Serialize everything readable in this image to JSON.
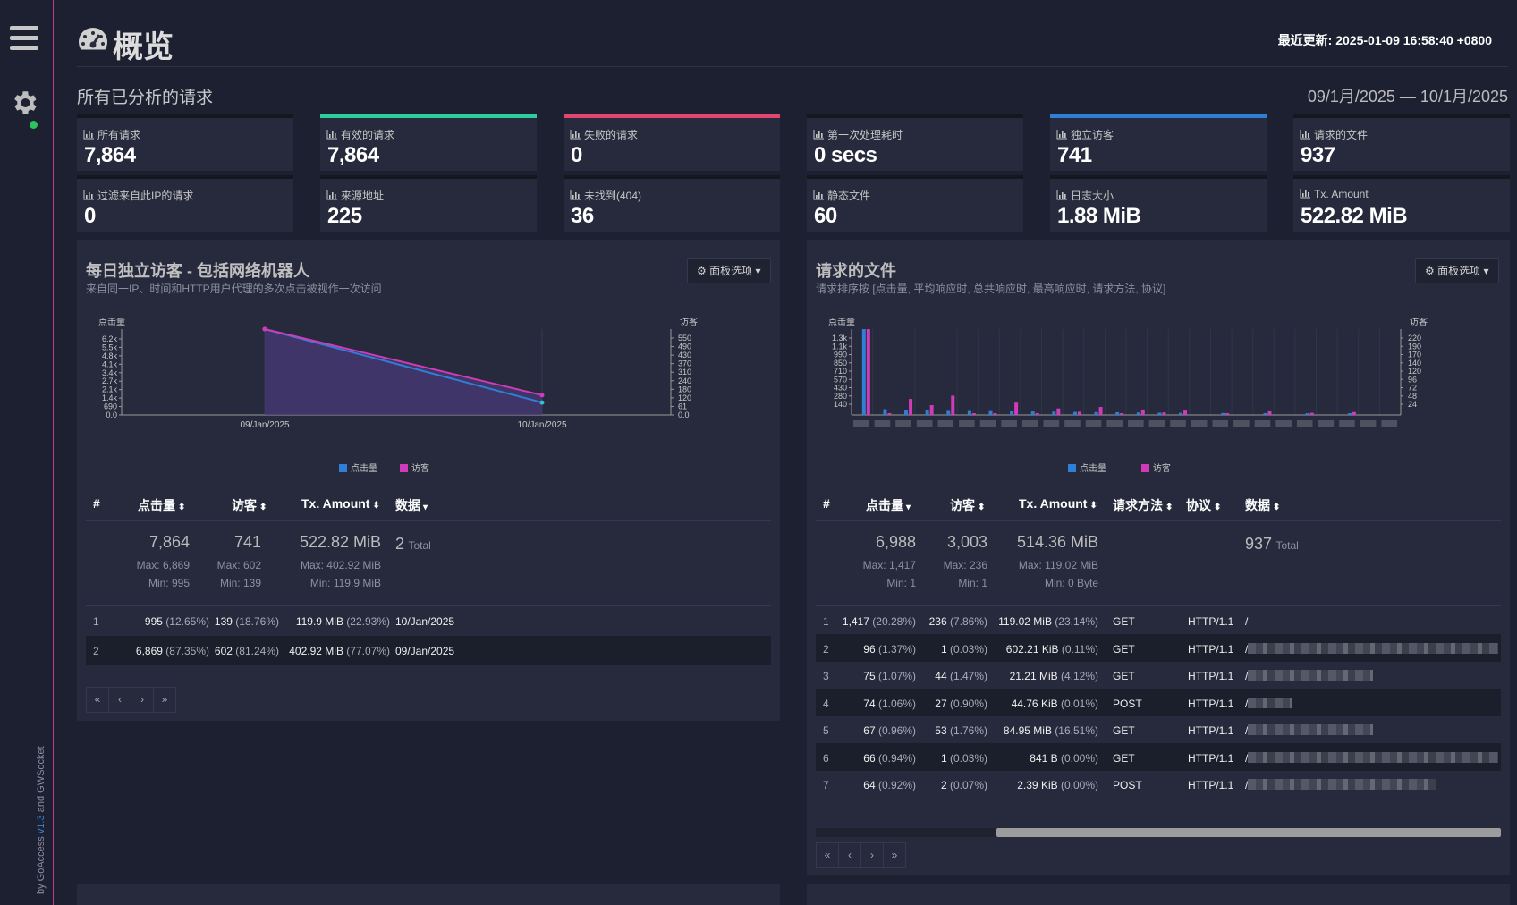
{
  "colors": {
    "accent": "#c23a8e",
    "green": "#2ecc9a",
    "pink": "#e0466e",
    "blue": "#2f7fd6",
    "hits": "#2f7fd6",
    "visitors": "#d13ab8"
  },
  "sidebar": {
    "menu_icon": "hamburger-icon",
    "settings_icon": "gear-icon",
    "status": "online",
    "credit_prefix": "by GoAccess",
    "credit_version": "v1.3",
    "credit_suffix": "and GWSocket"
  },
  "header": {
    "title": "概览",
    "title_icon": "dashboard-icon",
    "last_updated": "最近更新: 2025-01-09 16:58:40 +0800"
  },
  "overview": {
    "section_title": "所有已分析的请求",
    "date_range": "09/1月/2025 — 10/1月/2025",
    "cards": [
      {
        "label": "所有请求",
        "value": "7,864",
        "accent": "none"
      },
      {
        "label": "有效的请求",
        "value": "7,864",
        "accent": "green"
      },
      {
        "label": "失败的请求",
        "value": "0",
        "accent": "pink"
      },
      {
        "label": "第一次处理耗时",
        "value": "0 secs",
        "accent": "none"
      },
      {
        "label": "独立访客",
        "value": "741",
        "accent": "blue"
      },
      {
        "label": "请求的文件",
        "value": "937",
        "accent": "none"
      },
      {
        "label": "过滤来自此IP的请求",
        "value": "0",
        "accent": "none"
      },
      {
        "label": "来源地址",
        "value": "225",
        "accent": "none"
      },
      {
        "label": "未找到(404)",
        "value": "36",
        "accent": "none"
      },
      {
        "label": "静态文件",
        "value": "60",
        "accent": "none"
      },
      {
        "label": "日志大小",
        "value": "1.88 MiB",
        "accent": "none"
      },
      {
        "label": "Tx. Amount",
        "value": "522.82 MiB",
        "accent": "none"
      }
    ]
  },
  "visitors_panel": {
    "title": "每日独立访客 - 包括网络机器人",
    "subtitle": "来自同一IP、时间和HTTP用户代理的多次点击被视作一次访问",
    "options_label": "面板选项",
    "columns": [
      "#",
      "点击量",
      "访客",
      "Tx. Amount",
      "数据"
    ],
    "summary": {
      "hits": "7,864",
      "hits_max": "Max: 6,869",
      "hits_min": "Min: 995",
      "visitors": "741",
      "visitors_max": "Max: 602",
      "visitors_min": "Min: 139",
      "tx": "522.82 MiB",
      "tx_max": "Max: 402.92 MiB",
      "tx_min": "Min: 119.9 MiB",
      "data_total": "2",
      "total_label": "Total"
    },
    "rows": [
      {
        "n": "1",
        "hits": "995",
        "hits_pct": "(12.65%)",
        "visitors": "139",
        "visitors_pct": "(18.76%)",
        "tx": "119.9 MiB",
        "tx_pct": "(22.93%)",
        "data": "10/Jan/2025"
      },
      {
        "n": "2",
        "hits": "6,869",
        "hits_pct": "(87.35%)",
        "visitors": "602",
        "visitors_pct": "(81.24%)",
        "tx": "402.92 MiB",
        "tx_pct": "(77.07%)",
        "data": "09/Jan/2025"
      }
    ],
    "pager": [
      "«",
      "‹",
      "›",
      "»"
    ]
  },
  "files_panel": {
    "title": "请求的文件",
    "subtitle": "请求排序按 [点击量, 平均响应时, 总共响应时, 最高响应时, 请求方法, 协议]",
    "options_label": "面板选项",
    "columns": [
      "#",
      "点击量",
      "访客",
      "Tx. Amount",
      "请求方法",
      "协议",
      "数据"
    ],
    "summary": {
      "hits": "6,988",
      "hits_max": "Max: 1,417",
      "hits_min": "Min: 1",
      "visitors": "3,003",
      "visitors_max": "Max: 236",
      "visitors_min": "Min: 1",
      "tx": "514.36 MiB",
      "tx_max": "Max: 119.02 MiB",
      "tx_min": "Min: 0 Byte",
      "data_total": "937",
      "total_label": "Total"
    },
    "rows": [
      {
        "n": "1",
        "hits": "1,417",
        "hits_pct": "(20.28%)",
        "visitors": "236",
        "visitors_pct": "(7.86%)",
        "tx": "119.02 MiB",
        "tx_pct": "(23.14%)",
        "method": "GET",
        "proto": "HTTP/1.1",
        "path": "/"
      },
      {
        "n": "2",
        "hits": "96",
        "hits_pct": "(1.37%)",
        "visitors": "1",
        "visitors_pct": "(0.03%)",
        "tx": "602.21 KiB",
        "tx_pct": "(0.11%)",
        "method": "GET",
        "proto": "HTTP/1.1",
        "path": "/"
      },
      {
        "n": "3",
        "hits": "75",
        "hits_pct": "(1.07%)",
        "visitors": "44",
        "visitors_pct": "(1.47%)",
        "tx": "21.21 MiB",
        "tx_pct": "(4.12%)",
        "method": "GET",
        "proto": "HTTP/1.1",
        "path": "/"
      },
      {
        "n": "4",
        "hits": "74",
        "hits_pct": "(1.06%)",
        "visitors": "27",
        "visitors_pct": "(0.90%)",
        "tx": "44.76 KiB",
        "tx_pct": "(0.01%)",
        "method": "POST",
        "proto": "HTTP/1.1",
        "path": "/"
      },
      {
        "n": "5",
        "hits": "67",
        "hits_pct": "(0.96%)",
        "visitors": "53",
        "visitors_pct": "(1.76%)",
        "tx": "84.95 MiB",
        "tx_pct": "(16.51%)",
        "method": "GET",
        "proto": "HTTP/1.1",
        "path": "/"
      },
      {
        "n": "6",
        "hits": "66",
        "hits_pct": "(0.94%)",
        "visitors": "1",
        "visitors_pct": "(0.03%)",
        "tx": "841 B",
        "tx_pct": "(0.00%)",
        "method": "GET",
        "proto": "HTTP/1.1",
        "path": "/"
      },
      {
        "n": "7",
        "hits": "64",
        "hits_pct": "(0.92%)",
        "visitors": "2",
        "visitors_pct": "(0.07%)",
        "tx": "2.39 KiB",
        "tx_pct": "(0.00%)",
        "method": "POST",
        "proto": "HTTP/1.1",
        "path": "/"
      }
    ],
    "pager": [
      "«",
      "‹",
      "›",
      "»"
    ]
  },
  "chart_data": [
    {
      "type": "line",
      "title": "每日独立访客 - 包括网络机器人",
      "categories": [
        "09/Jan/2025",
        "10/Jan/2025"
      ],
      "series": [
        {
          "name": "点击量",
          "axis": "left",
          "values": [
            6869,
            995
          ]
        },
        {
          "name": "访客",
          "axis": "right",
          "values": [
            602,
            139
          ]
        }
      ],
      "ylabel_left": "点击量",
      "ylabel_right": "访客",
      "ylim_left": [
        0,
        6869
      ],
      "ylim_right": [
        0,
        602
      ],
      "yticks_left": [
        "6.2k",
        "5.5k",
        "4.8k",
        "4.1k",
        "3.4k",
        "2.7k",
        "2.1k",
        "1.4k",
        "690",
        "0.0"
      ],
      "yticks_right": [
        "550",
        "490",
        "430",
        "370",
        "310",
        "240",
        "180",
        "120",
        "61",
        "0.0"
      ],
      "legend": [
        "点击量",
        "访客"
      ],
      "legend_position": "bottom",
      "grid": true
    },
    {
      "type": "bar",
      "title": "请求的文件",
      "series": [
        {
          "name": "点击量",
          "axis": "left",
          "values": [
            1417,
            96,
            75,
            74,
            67,
            66,
            64,
            60,
            58,
            55,
            50,
            48,
            45,
            40,
            38,
            35,
            33,
            30,
            28,
            25
          ]
        },
        {
          "name": "访客",
          "axis": "right",
          "values": [
            236,
            1,
            44,
            27,
            53,
            1,
            2,
            34,
            5,
            18,
            9,
            22,
            4,
            15,
            7,
            12,
            3,
            10,
            6,
            8
          ]
        }
      ],
      "ylabel_left": "点击量",
      "ylabel_right": "访客",
      "ylim_left": [
        0,
        1417
      ],
      "ylim_right": [
        0,
        236
      ],
      "yticks_left": [
        "1.3k",
        "1.1k",
        "990",
        "850",
        "710",
        "570",
        "430",
        "280",
        "140"
      ],
      "yticks_right": [
        "220",
        "190",
        "170",
        "140",
        "120",
        "96",
        "72",
        "48",
        "24"
      ],
      "legend": [
        "点击量",
        "访客"
      ],
      "legend_position": "bottom",
      "grid": true
    }
  ]
}
